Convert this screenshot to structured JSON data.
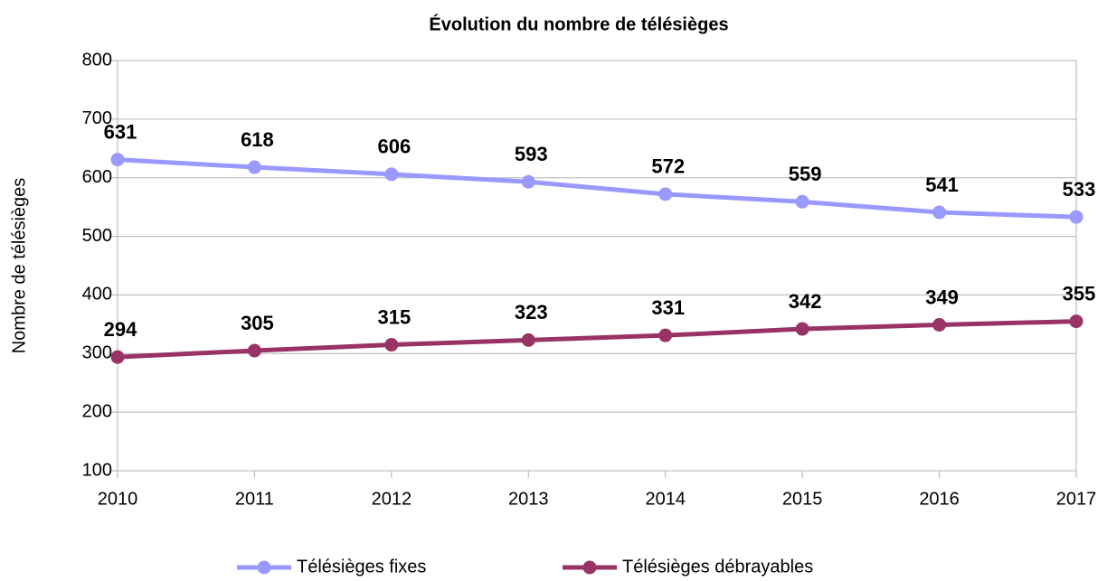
{
  "chart_data": {
    "type": "line",
    "title": "Évolution du nombre de télésièges",
    "y_label": "Nombre de télésièges",
    "x": [
      2010,
      2011,
      2012,
      2013,
      2014,
      2015,
      2016,
      2017
    ],
    "xlim": [
      2010,
      2017
    ],
    "xticks": [
      2010,
      2011,
      2012,
      2013,
      2014,
      2015,
      2016,
      2017
    ],
    "ylim": [
      100,
      800
    ],
    "yticks": [
      100,
      200,
      300,
      400,
      500,
      600,
      700,
      800
    ],
    "grid": true,
    "legend": "bottom",
    "series": [
      {
        "name": "Télésièges fixes",
        "color": "#9999ff",
        "values": [
          631,
          618,
          606,
          593,
          572,
          559,
          541,
          533
        ]
      },
      {
        "name": "Télésièges débrayables",
        "color": "#993366",
        "values": [
          294,
          305,
          315,
          323,
          331,
          342,
          349,
          355
        ]
      }
    ]
  }
}
